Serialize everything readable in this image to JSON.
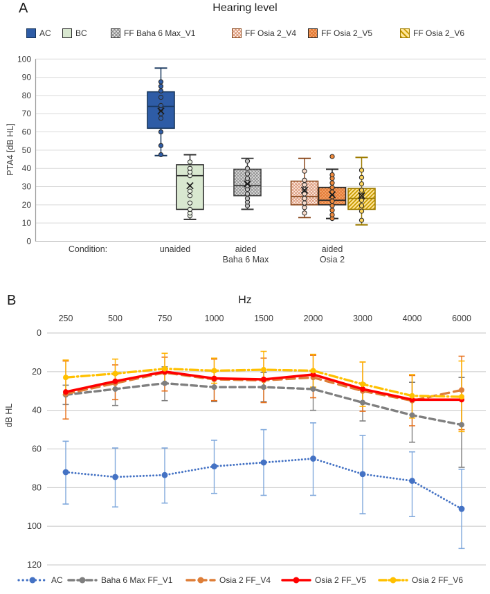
{
  "figure": {
    "panel_a": {
      "label": "A"
    },
    "panel_b": {
      "label": "B"
    }
  },
  "chart_data": [
    {
      "type": "box",
      "panel": "A",
      "title": "Hearing level",
      "ylabel": "PTA4 [dB HL]",
      "ylim": [
        0,
        100
      ],
      "ytick_step": 10,
      "grid": true,
      "legend_position": "top",
      "x_axis_prefix": "Condition:",
      "condition_labels": [
        [
          "unaided"
        ],
        [
          "aided",
          "Baha 6 Max"
        ],
        [
          "aided",
          "Osia 2"
        ]
      ],
      "groups": [
        {
          "name": "AC",
          "condition": "unaided",
          "whisker_low": 47,
          "q1": 62,
          "median": 74,
          "q3": 82,
          "whisker_high": 95,
          "mean": 71.5,
          "points": [
            47.5,
            52.5,
            60,
            67.5,
            70,
            72.5,
            74.5,
            79,
            82.5,
            85,
            87.5
          ],
          "outliers": [],
          "colors": {
            "fill": "#2E5CA6",
            "hatch": null,
            "border": "#17365D",
            "point": "#2E5CA6",
            "hatch_type": "solid"
          }
        },
        {
          "name": "BC",
          "condition": "unaided",
          "whisker_low": 12,
          "q1": 17.5,
          "median": 36,
          "q3": 42,
          "whisker_high": 47.5,
          "mean": 30.5,
          "points": [
            14,
            15.5,
            17.5,
            21,
            25,
            27.5,
            36,
            38,
            40,
            43.5
          ],
          "outliers": [],
          "colors": {
            "fill": "#D9E8D0",
            "hatch": null,
            "border": "#2E2E2E",
            "point": "#EAF2E3",
            "hatch_type": "solid"
          }
        },
        {
          "name": "FF Baha 6 Max_V1",
          "condition": "aided Baha 6 Max",
          "whisker_low": 17.5,
          "q1": 25,
          "median": 30.5,
          "q3": 39.5,
          "whisker_high": 45.5,
          "mean": 31.5,
          "points": [
            19.5,
            21.5,
            23.5,
            26,
            28.5,
            30.5,
            32.5,
            34.5,
            37,
            40,
            44
          ],
          "outliers": [],
          "colors": {
            "fill": "#DCDCDC",
            "hatch": "#8A8A8A",
            "border": "#3F3F3F",
            "point": "#C4C4C4",
            "hatch_type": "cross"
          }
        },
        {
          "name": "FF Osia 2_V4",
          "condition": "aided Osia 2",
          "whisker_low": 13,
          "q1": 20,
          "median": 24.5,
          "q3": 33,
          "whisker_high": 45.5,
          "mean": 28,
          "points": [
            15.5,
            18.5,
            21,
            23.5,
            26,
            28.5,
            31,
            33.5,
            38.5
          ],
          "outliers": [],
          "colors": {
            "fill": "#FCEBE1",
            "hatch": "#D89070",
            "border": "#8C4B21",
            "point": "#F8DCCB",
            "hatch_type": "cross"
          }
        },
        {
          "name": "FF Osia 2_V5",
          "condition": "aided Osia 2",
          "whisker_low": 12.5,
          "q1": 20,
          "median": 22.5,
          "q3": 29.5,
          "whisker_high": 39.5,
          "mean": 25.5,
          "points": [
            12.5,
            14.5,
            17,
            19.5,
            22,
            24.5,
            27,
            29.5,
            32,
            34.5,
            36.5
          ],
          "outliers": [
            46.5
          ],
          "colors": {
            "fill": "#F4A56B",
            "hatch": "#E0742F",
            "border": "#262626",
            "point": "#F08A3C",
            "hatch_type": "cross"
          }
        },
        {
          "name": "FF Osia 2_V6",
          "condition": "aided Osia 2",
          "whisker_low": 9,
          "q1": 17.5,
          "median": 23.5,
          "q3": 29,
          "whisker_high": 46,
          "mean": 25,
          "points": [
            11.5,
            16.5,
            19.5,
            22.5,
            25,
            28,
            31.5,
            35,
            39
          ],
          "outliers": [],
          "colors": {
            "fill": "#FFE59A",
            "hatch": "#C79A00",
            "border": "#9E7C00",
            "point": "#FFD75E",
            "hatch_type": "diag"
          }
        }
      ]
    },
    {
      "type": "line",
      "panel": "B",
      "title": "Hz",
      "ylabel": "dB HL",
      "ylim": [
        0,
        120
      ],
      "y_inverted": true,
      "ytick_step": 20,
      "grid": true,
      "legend_position": "bottom",
      "categories": [
        250,
        500,
        750,
        1000,
        1500,
        2000,
        3000,
        4000,
        6000
      ],
      "series": [
        {
          "name": "AC",
          "color": "#4472C4",
          "err_color": "#7FA8DC",
          "style": "dotted",
          "values": [
            72,
            74.5,
            73.5,
            69,
            67,
            65,
            73,
            76.5,
            91
          ],
          "err_low": [
            56,
            59.5,
            59.5,
            55.5,
            50,
            46.5,
            53,
            61.5,
            70.5
          ],
          "err_high": [
            88.5,
            90,
            88,
            83,
            84,
            84,
            93.5,
            95,
            111.5
          ]
        },
        {
          "name": "Baha 6 Max FF_V1",
          "color": "#7F7F7F",
          "err_color": "#7F7F7F",
          "style": "dashed",
          "values": [
            32,
            29,
            26,
            28,
            28,
            29,
            36,
            42.5,
            47.5
          ],
          "err_low": [
            27,
            21.5,
            17.5,
            20,
            20.5,
            20,
            26,
            25.5,
            23
          ],
          "err_high": [
            37,
            37.5,
            35,
            35.5,
            35.5,
            40,
            45.5,
            56.5,
            69.5
          ]
        },
        {
          "name": "Osia 2 FF_V4",
          "color": "#DE7E38",
          "err_color": null,
          "style": "longdash",
          "values": [
            31.5,
            26,
            20.5,
            24,
            24.5,
            23,
            30,
            35,
            29.5
          ],
          "err_low": null,
          "err_high": null
        },
        {
          "name": "Osia 2 FF_V5",
          "color": "#FF0000",
          "err_color": "#E8701A",
          "style": "solid",
          "values": [
            30.5,
            25,
            20,
            23.5,
            24,
            21.5,
            29,
            34.5,
            34.5
          ],
          "err_low": [
            14.5,
            16.5,
            12.5,
            13.5,
            13,
            11.5,
            15,
            22,
            12
          ],
          "err_high": [
            44.5,
            34.5,
            30,
            35,
            36,
            33.5,
            40.5,
            48,
            50
          ]
        },
        {
          "name": "Osia 2 FF_V6",
          "color": "#FFC000",
          "err_color": "#FFB300",
          "style": "dashdot",
          "values": [
            23,
            21,
            18.5,
            19.5,
            19,
            19.5,
            26.5,
            32.5,
            33
          ],
          "err_low": [
            14,
            13.5,
            10.5,
            13,
            9.5,
            11,
            15,
            21.5,
            14.5
          ],
          "err_high": [
            32,
            29,
            26,
            26,
            28.5,
            28,
            38,
            44,
            51
          ]
        }
      ]
    }
  ]
}
